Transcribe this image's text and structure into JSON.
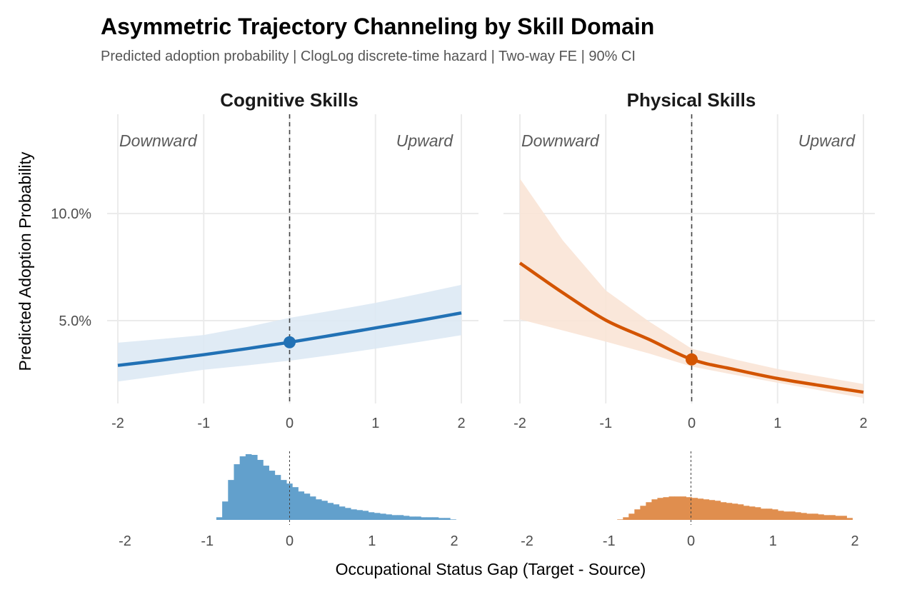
{
  "chart_data": {
    "type": "line",
    "title": "Asymmetric Trajectory Channeling by Skill Domain",
    "subtitle": "Predicted adoption probability | ClogLog discrete-time hazard | Two-way FE | 90% CI",
    "xlabel": "Occupational Status Gap (Target - Source)",
    "ylabel": "Predicted Adoption Probability",
    "xlim": [
      -2,
      2
    ],
    "ylim_percent": [
      1.1,
      14.6
    ],
    "x_ticks": [
      "-2",
      "-1",
      "0",
      "1",
      "2"
    ],
    "x_tick_values": [
      -2,
      -1,
      0,
      1,
      2
    ],
    "y_ticks": [
      "5.0%",
      "10.0%"
    ],
    "y_tick_values": [
      5,
      10
    ],
    "grid": true,
    "reference_line_x": 0,
    "annotations": {
      "left": "Downward",
      "right": "Upward"
    },
    "x": [
      -2,
      -1.5,
      -1,
      -0.5,
      0,
      0.5,
      1,
      1.5,
      2
    ],
    "panels": [
      {
        "name": "Cognitive Skills",
        "color": "#2171b5",
        "band_color": "#dde9f4",
        "hist_color": "#62a0cc",
        "predicted": [
          2.91,
          3.15,
          3.41,
          3.69,
          3.99,
          4.32,
          4.66,
          5.0,
          5.36
        ],
        "ci_upper": [
          3.97,
          4.14,
          4.33,
          4.7,
          5.13,
          5.47,
          5.83,
          6.24,
          6.67
        ],
        "ci_lower": [
          2.16,
          2.43,
          2.71,
          2.91,
          3.13,
          3.4,
          3.69,
          4.0,
          4.32
        ],
        "point": {
          "x": 0,
          "y": 3.99
        },
        "histogram": {
          "bin_start": -0.89,
          "bin_width": 0.071,
          "counts": [
            11,
            77,
            167,
            233,
            266,
            275,
            272,
            251,
            227,
            206,
            188,
            167,
            152,
            137,
            119,
            110,
            98,
            86,
            80,
            71,
            65,
            56,
            50,
            44,
            41,
            38,
            32,
            29,
            26,
            23,
            20,
            20,
            17,
            14,
            14,
            11,
            11,
            11,
            8,
            8,
            2
          ]
        }
      },
      {
        "name": "Physical Skills",
        "color": "#d35400",
        "band_color": "#f9e4d6",
        "hist_color": "#e08e4e",
        "predicted": [
          7.69,
          6.3,
          5.02,
          4.13,
          3.19,
          2.72,
          2.3,
          1.97,
          1.66
        ],
        "ci_upper": [
          11.63,
          8.74,
          6.41,
          4.97,
          3.69,
          3.19,
          2.74,
          2.39,
          2.04
        ],
        "ci_lower": [
          5.06,
          4.54,
          4.02,
          3.47,
          2.86,
          2.47,
          2.1,
          1.74,
          1.39
        ],
        "point": {
          "x": 0,
          "y": 3.19
        },
        "histogram": {
          "bin_start": -0.9,
          "bin_width": 0.07,
          "counts": [
            2,
            11,
            26,
            44,
            59,
            74,
            86,
            92,
            95,
            98,
            98,
            98,
            95,
            92,
            89,
            86,
            83,
            80,
            74,
            71,
            68,
            65,
            59,
            56,
            53,
            47,
            47,
            44,
            38,
            35,
            35,
            32,
            29,
            26,
            26,
            23,
            20,
            20,
            17,
            17,
            8
          ]
        }
      }
    ]
  }
}
